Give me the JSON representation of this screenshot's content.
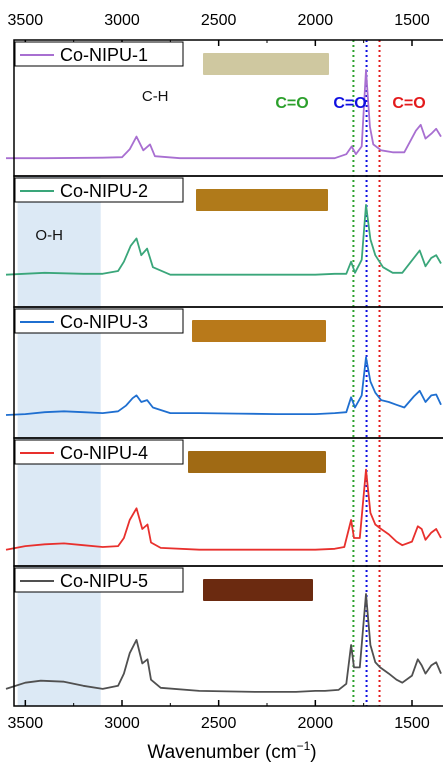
{
  "chart_data": {
    "type": "line",
    "xlabel": "Wavenumber (cm",
    "xlabel_superscript": "−1",
    "xlabel_close": ")",
    "x_reversed": true,
    "xlim": [
      3600,
      1350
    ],
    "x_ticks": [
      3500,
      3000,
      2500,
      2000,
      1500
    ],
    "y_ticks": "none",
    "grid": false,
    "shaded_region": {
      "label": "O-H",
      "x_range": [
        3540,
        3110
      ],
      "color": "#dce9f5"
    },
    "guide_lines": [
      {
        "x": 1803,
        "label": "C=O",
        "color": "#2ca02c"
      },
      {
        "x": 1735,
        "label": "C=O",
        "color": "#1010e0"
      },
      {
        "x": 1668,
        "label": "C=O",
        "color": "#e31a1c"
      }
    ],
    "annotations": [
      {
        "text": "C-H",
        "x": 2880,
        "panel": 0
      }
    ],
    "series": [
      {
        "name": "Co-NIPU-1",
        "color": "#a86fd1",
        "sample_color": "#cfc8a0",
        "points": [
          [
            3600,
            0.08
          ],
          [
            3400,
            0.08
          ],
          [
            3100,
            0.085
          ],
          [
            3000,
            0.09
          ],
          [
            2960,
            0.17
          ],
          [
            2925,
            0.3
          ],
          [
            2890,
            0.16
          ],
          [
            2855,
            0.22
          ],
          [
            2830,
            0.1
          ],
          [
            2700,
            0.08
          ],
          [
            2400,
            0.08
          ],
          [
            2100,
            0.08
          ],
          [
            1900,
            0.08
          ],
          [
            1840,
            0.12
          ],
          [
            1812,
            0.2
          ],
          [
            1790,
            0.12
          ],
          [
            1760,
            0.2
          ],
          [
            1738,
            0.98
          ],
          [
            1718,
            0.4
          ],
          [
            1700,
            0.22
          ],
          [
            1660,
            0.16
          ],
          [
            1600,
            0.14
          ],
          [
            1540,
            0.14
          ],
          [
            1480,
            0.36
          ],
          [
            1455,
            0.42
          ],
          [
            1430,
            0.28
          ],
          [
            1400,
            0.33
          ],
          [
            1375,
            0.38
          ],
          [
            1350,
            0.3
          ]
        ]
      },
      {
        "name": "Co-NIPU-2",
        "color": "#3aa67a",
        "sample_color": "#b07a1a",
        "points": [
          [
            3600,
            0.24
          ],
          [
            3400,
            0.26
          ],
          [
            3200,
            0.25
          ],
          [
            3100,
            0.25
          ],
          [
            3020,
            0.28
          ],
          [
            2990,
            0.38
          ],
          [
            2955,
            0.55
          ],
          [
            2925,
            0.63
          ],
          [
            2900,
            0.45
          ],
          [
            2870,
            0.52
          ],
          [
            2840,
            0.32
          ],
          [
            2750,
            0.24
          ],
          [
            2500,
            0.24
          ],
          [
            2200,
            0.24
          ],
          [
            2000,
            0.24
          ],
          [
            1900,
            0.25
          ],
          [
            1840,
            0.25
          ],
          [
            1815,
            0.38
          ],
          [
            1795,
            0.26
          ],
          [
            1760,
            0.4
          ],
          [
            1738,
            0.99
          ],
          [
            1715,
            0.62
          ],
          [
            1690,
            0.45
          ],
          [
            1650,
            0.32
          ],
          [
            1600,
            0.26
          ],
          [
            1550,
            0.26
          ],
          [
            1490,
            0.42
          ],
          [
            1460,
            0.5
          ],
          [
            1430,
            0.33
          ],
          [
            1400,
            0.42
          ],
          [
            1375,
            0.45
          ],
          [
            1350,
            0.36
          ]
        ]
      },
      {
        "name": "Co-NIPU-3",
        "color": "#1f6fd0",
        "sample_color": "#b8791a",
        "points": [
          [
            3600,
            0.14
          ],
          [
            3500,
            0.15
          ],
          [
            3400,
            0.17
          ],
          [
            3300,
            0.18
          ],
          [
            3200,
            0.17
          ],
          [
            3100,
            0.16
          ],
          [
            3020,
            0.18
          ],
          [
            2980,
            0.24
          ],
          [
            2945,
            0.32
          ],
          [
            2925,
            0.35
          ],
          [
            2900,
            0.28
          ],
          [
            2870,
            0.3
          ],
          [
            2840,
            0.22
          ],
          [
            2750,
            0.16
          ],
          [
            2600,
            0.16
          ],
          [
            2400,
            0.155
          ],
          [
            2200,
            0.15
          ],
          [
            2000,
            0.15
          ],
          [
            1900,
            0.16
          ],
          [
            1840,
            0.17
          ],
          [
            1815,
            0.33
          ],
          [
            1795,
            0.22
          ],
          [
            1760,
            0.35
          ],
          [
            1738,
            0.76
          ],
          [
            1715,
            0.5
          ],
          [
            1690,
            0.38
          ],
          [
            1660,
            0.3
          ],
          [
            1620,
            0.28
          ],
          [
            1580,
            0.25
          ],
          [
            1540,
            0.22
          ],
          [
            1490,
            0.34
          ],
          [
            1460,
            0.4
          ],
          [
            1430,
            0.28
          ],
          [
            1400,
            0.35
          ],
          [
            1375,
            0.36
          ],
          [
            1350,
            0.25
          ]
        ]
      },
      {
        "name": "Co-NIPU-4",
        "color": "#e8302d",
        "sample_color": "#a06a14",
        "points": [
          [
            3600,
            0.07
          ],
          [
            3500,
            0.11
          ],
          [
            3400,
            0.13
          ],
          [
            3300,
            0.14
          ],
          [
            3200,
            0.12
          ],
          [
            3100,
            0.1
          ],
          [
            3020,
            0.11
          ],
          [
            2990,
            0.2
          ],
          [
            2960,
            0.4
          ],
          [
            2925,
            0.53
          ],
          [
            2895,
            0.3
          ],
          [
            2868,
            0.35
          ],
          [
            2850,
            0.15
          ],
          [
            2800,
            0.09
          ],
          [
            2600,
            0.07
          ],
          [
            2300,
            0.07
          ],
          [
            2000,
            0.07
          ],
          [
            1900,
            0.08
          ],
          [
            1850,
            0.1
          ],
          [
            1815,
            0.4
          ],
          [
            1800,
            0.2
          ],
          [
            1770,
            0.2
          ],
          [
            1738,
            0.96
          ],
          [
            1715,
            0.48
          ],
          [
            1690,
            0.35
          ],
          [
            1660,
            0.3
          ],
          [
            1620,
            0.24
          ],
          [
            1580,
            0.16
          ],
          [
            1550,
            0.12
          ],
          [
            1500,
            0.16
          ],
          [
            1470,
            0.33
          ],
          [
            1450,
            0.3
          ],
          [
            1430,
            0.18
          ],
          [
            1400,
            0.26
          ],
          [
            1375,
            0.3
          ],
          [
            1350,
            0.2
          ]
        ]
      },
      {
        "name": "Co-NIPU-5",
        "color": "#505050",
        "sample_color": "#6b2a10",
        "points": [
          [
            3600,
            0.07
          ],
          [
            3500,
            0.13
          ],
          [
            3420,
            0.15
          ],
          [
            3300,
            0.14
          ],
          [
            3200,
            0.1
          ],
          [
            3100,
            0.07
          ],
          [
            3020,
            0.1
          ],
          [
            2990,
            0.22
          ],
          [
            2960,
            0.42
          ],
          [
            2925,
            0.55
          ],
          [
            2895,
            0.32
          ],
          [
            2868,
            0.36
          ],
          [
            2850,
            0.16
          ],
          [
            2800,
            0.08
          ],
          [
            2600,
            0.05
          ],
          [
            2300,
            0.04
          ],
          [
            2100,
            0.04
          ],
          [
            2000,
            0.05
          ],
          [
            1950,
            0.05
          ],
          [
            1880,
            0.06
          ],
          [
            1840,
            0.12
          ],
          [
            1815,
            0.5
          ],
          [
            1800,
            0.28
          ],
          [
            1770,
            0.28
          ],
          [
            1738,
            1.0
          ],
          [
            1715,
            0.5
          ],
          [
            1690,
            0.33
          ],
          [
            1665,
            0.28
          ],
          [
            1620,
            0.22
          ],
          [
            1580,
            0.16
          ],
          [
            1550,
            0.13
          ],
          [
            1500,
            0.2
          ],
          [
            1470,
            0.36
          ],
          [
            1450,
            0.3
          ],
          [
            1430,
            0.22
          ],
          [
            1400,
            0.3
          ],
          [
            1375,
            0.33
          ],
          [
            1350,
            0.22
          ]
        ]
      }
    ]
  }
}
